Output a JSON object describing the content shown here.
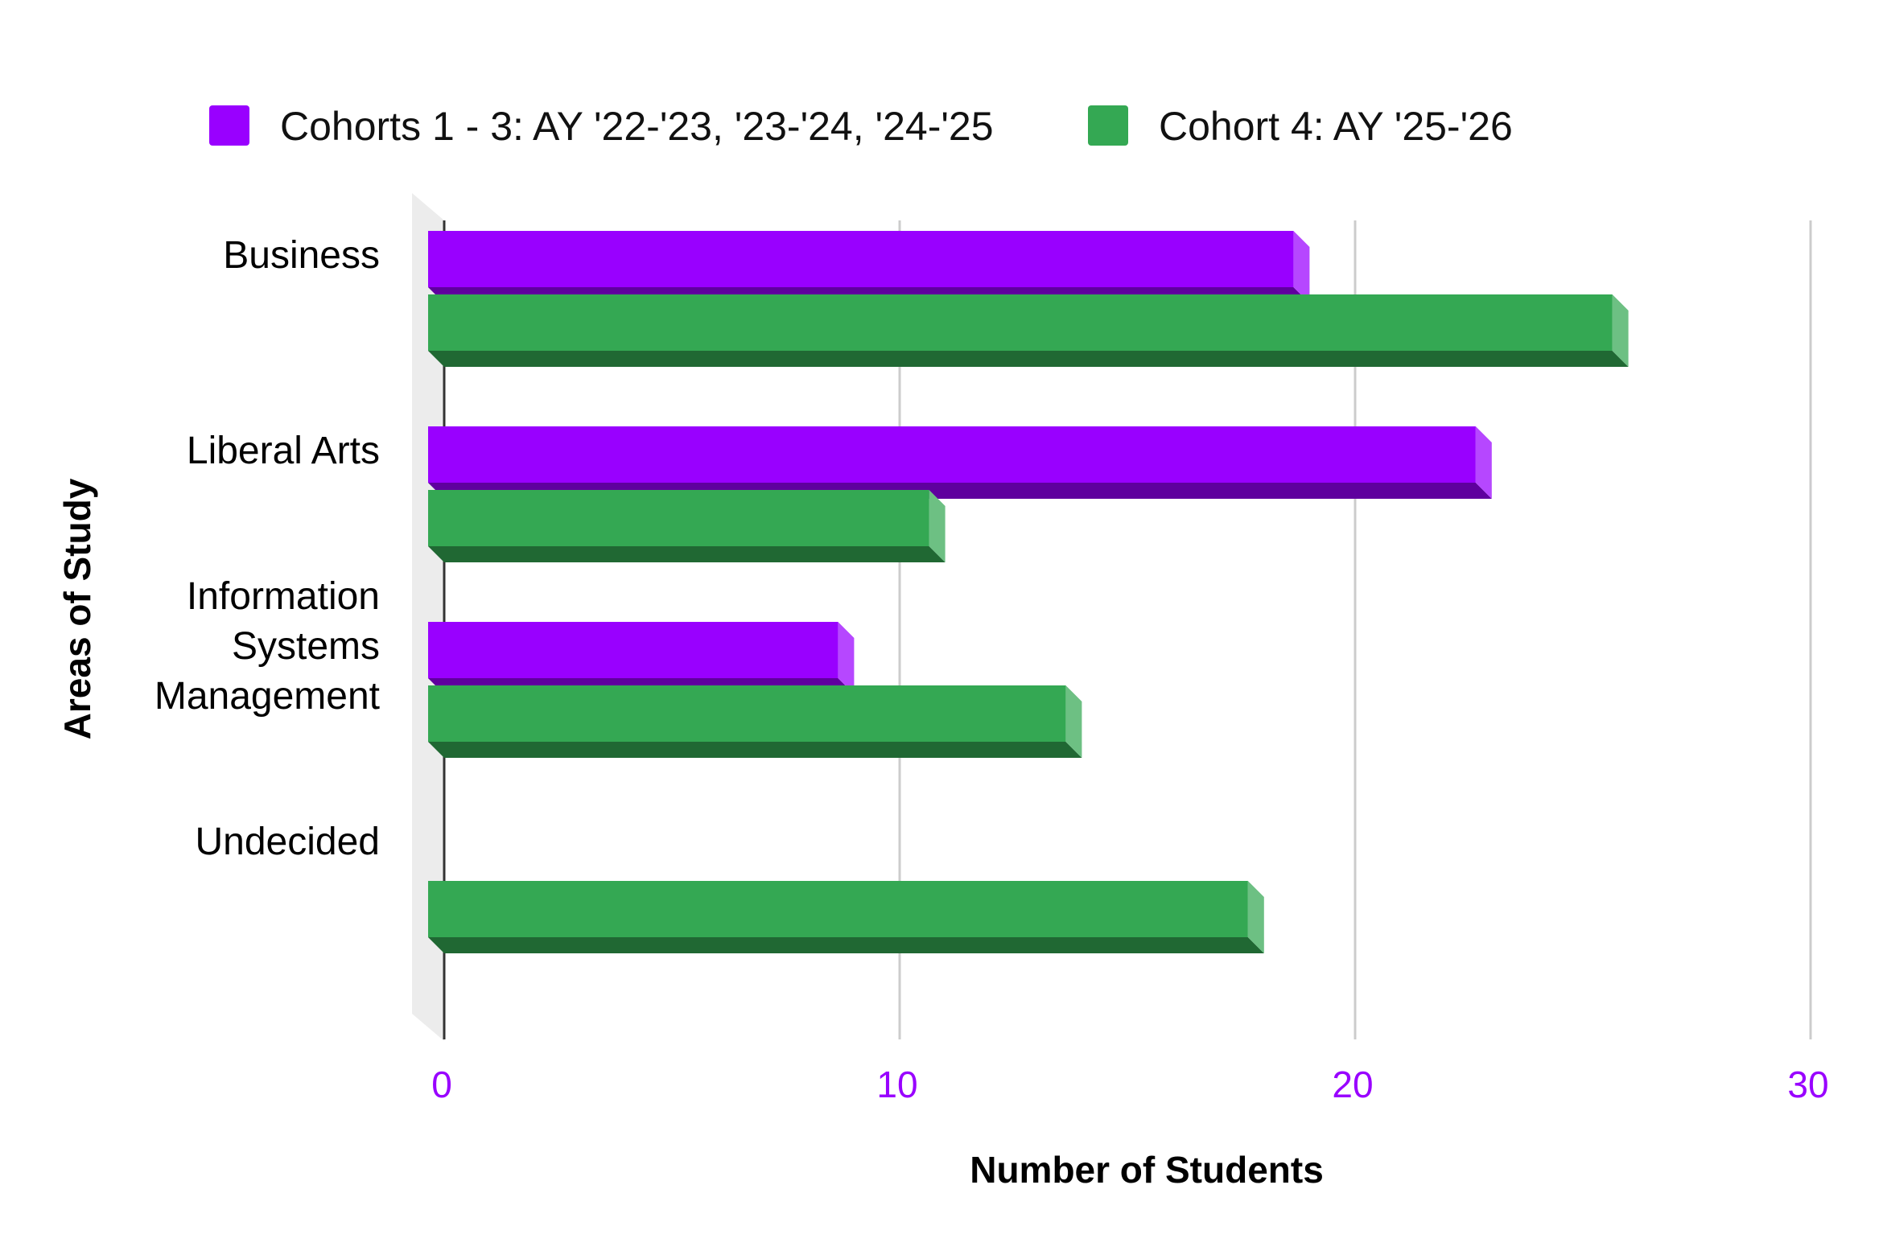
{
  "chart_data": {
    "type": "bar",
    "orientation": "horizontal",
    "style": "3d",
    "title": "",
    "xlabel": "Number of Students",
    "ylabel": "Areas of Study",
    "xlim": [
      0,
      30
    ],
    "x_ticks": [
      "0",
      "10",
      "20",
      "30"
    ],
    "grid": "vertical",
    "legend_position": "top",
    "categories": [
      [
        "Business"
      ],
      [
        "Liberal Arts"
      ],
      [
        "Information",
        "Systems",
        "Management"
      ],
      [
        "Undecided"
      ]
    ],
    "series": [
      {
        "name": "Cohorts 1 - 3: AY '22-'23, '23-'24, '24-'25",
        "color": "#9900ff",
        "values": [
          19,
          23,
          9,
          0
        ]
      },
      {
        "name": "Cohort 4: AY '25-'26",
        "color": "#34a853",
        "values": [
          26,
          11,
          14,
          18
        ]
      }
    ],
    "tick_color": "#9900ff"
  }
}
